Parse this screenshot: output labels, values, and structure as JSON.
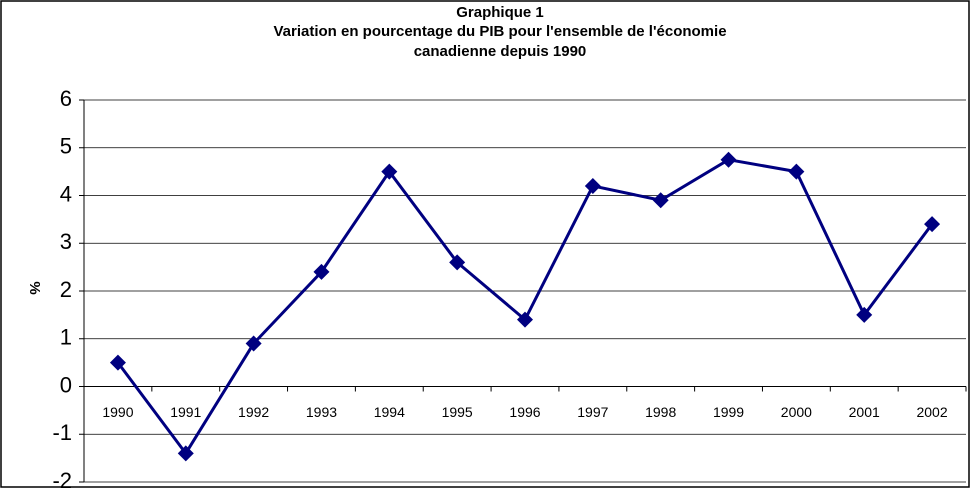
{
  "chart_data": {
    "type": "line",
    "title": [
      "Graphique 1",
      "Variation en pourcentage du PIB pour l'ensemble de l'économie",
      "canadienne depuis 1990"
    ],
    "y_label": "%",
    "categories": [
      "1990",
      "1991",
      "1992",
      "1993",
      "1994",
      "1995",
      "1996",
      "1997",
      "1998",
      "1999",
      "2000",
      "2001",
      "2002"
    ],
    "series": [
      {
        "name": "PIB",
        "color": "#000080",
        "values": [
          0.5,
          -1.4,
          0.9,
          2.4,
          4.5,
          2.6,
          1.4,
          4.2,
          3.9,
          4.75,
          4.5,
          1.5,
          3.4
        ]
      }
    ],
    "ylim": [
      -2,
      6
    ],
    "yticks": [
      -2,
      -1,
      0,
      1,
      2,
      3,
      4,
      5,
      6
    ],
    "grid": true
  }
}
